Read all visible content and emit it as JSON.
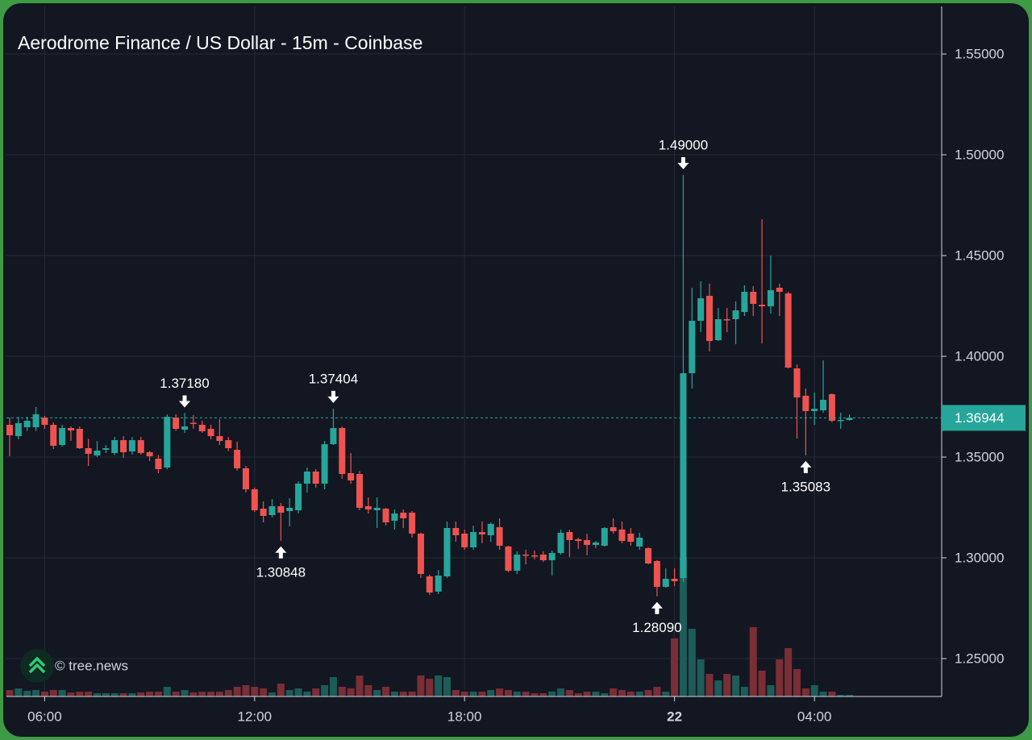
{
  "chart_data": {
    "type": "candlestick",
    "title": "Aerodrome Finance / US Dollar - 15m - Coinbase",
    "watermark": "© tree.news",
    "categories": [
      null,
      null,
      null,
      null,
      "06:00",
      null,
      null,
      null,
      null,
      null,
      null,
      null,
      null,
      null,
      null,
      null,
      null,
      null,
      null,
      null,
      null,
      null,
      null,
      null,
      null,
      null,
      null,
      null,
      "12:00",
      null,
      null,
      null,
      null,
      null,
      null,
      null,
      null,
      null,
      null,
      null,
      null,
      null,
      null,
      null,
      null,
      null,
      null,
      null,
      null,
      null,
      null,
      null,
      "18:00",
      null,
      null,
      null,
      null,
      null,
      null,
      null,
      null,
      null,
      null,
      null,
      null,
      null,
      null,
      null,
      null,
      null,
      null,
      null,
      null,
      null,
      null,
      null,
      "22",
      null,
      null,
      null,
      null,
      null,
      null,
      null,
      null,
      null,
      null,
      null,
      null,
      null,
      null,
      null,
      "04:00",
      null,
      null,
      null,
      null
    ],
    "open": [
      1.366,
      1.3604,
      1.3648,
      1.3648,
      1.3696,
      1.366,
      1.356,
      1.3644,
      1.364,
      1.3544,
      1.3508,
      1.3536,
      1.352,
      1.3584,
      1.3528,
      1.3584,
      1.3524,
      1.3492,
      1.3448,
      1.3696,
      1.3636,
      1.367,
      1.366,
      1.364,
      1.3604,
      1.3584,
      1.3536,
      1.3444,
      1.334,
      1.3244,
      1.3212,
      1.3256,
      1.3232,
      1.3236,
      1.3368,
      1.3428,
      1.3368,
      1.3564,
      1.3644,
      1.342,
      1.3416,
      1.3256,
      1.3236,
      1.3244,
      1.3184,
      1.3224,
      1.3224,
      1.312,
      1.2908,
      1.2832,
      1.2908,
      1.3148,
      1.312,
      1.3052,
      1.3128,
      1.3112,
      1.3152,
      1.3056,
      1.2936,
      1.3016,
      1.3012,
      1.3016,
      1.2988,
      1.3024,
      1.3128,
      1.3092,
      1.3088,
      1.3064,
      1.306,
      1.3152,
      1.314,
      1.312,
      1.3056,
      1.3048,
      1.2984,
      1.2856,
      1.2896,
      1.29,
      1.3916,
      1.4176,
      1.43,
      1.408,
      1.4184,
      1.4184,
      1.422,
      1.432,
      1.4256,
      1.4248,
      1.434,
      1.4312,
      1.394,
      1.3804,
      1.3728,
      1.3732,
      1.3812,
      1.368,
      1.3684
    ],
    "high": [
      1.3696,
      1.37,
      1.37,
      1.3748,
      1.3704,
      1.3672,
      1.366,
      1.3652,
      1.3652,
      1.359,
      1.358,
      1.356,
      1.36,
      1.3604,
      1.36,
      1.36,
      1.353,
      1.351,
      1.3712,
      1.3712,
      1.3718,
      1.3708,
      1.368,
      1.366,
      1.3688,
      1.36,
      1.3576,
      1.3456,
      1.3348,
      1.328,
      1.3292,
      1.3272,
      1.3296,
      1.338,
      1.3448,
      1.344,
      1.358,
      1.37404,
      1.3652,
      1.352,
      1.343,
      1.33,
      1.33,
      1.3248,
      1.324,
      1.324,
      1.3232,
      1.3124,
      1.2916,
      1.294,
      1.318,
      1.318,
      1.314,
      1.316,
      1.318,
      1.3176,
      1.3196,
      1.306,
      1.3032,
      1.304,
      1.3036,
      1.3032,
      1.3036,
      1.314,
      1.314,
      1.31,
      1.312,
      1.3084,
      1.3152,
      1.3196,
      1.318,
      1.3148,
      1.3124,
      1.3052,
      1.2988,
      1.2948,
      1.2948,
      1.49,
      1.434,
      1.4372,
      1.436,
      1.424,
      1.424,
      1.4272,
      1.4352,
      1.4348,
      1.468,
      1.45,
      1.436,
      1.432,
      1.396,
      1.384,
      1.382,
      1.398,
      1.3816,
      1.372,
      1.3712
    ],
    "low": [
      1.3504,
      1.3588,
      1.363,
      1.363,
      1.364,
      1.354,
      1.3552,
      1.358,
      1.354,
      1.3456,
      1.35,
      1.352,
      1.351,
      1.3496,
      1.3512,
      1.3512,
      1.348,
      1.342,
      1.344,
      1.363,
      1.362,
      1.364,
      1.362,
      1.3588,
      1.356,
      1.353,
      1.3432,
      1.3324,
      1.3228,
      1.3176,
      1.32,
      1.30848,
      1.3156,
      1.322,
      1.3324,
      1.3348,
      1.334,
      1.356,
      1.3392,
      1.3368,
      1.3236,
      1.322,
      1.3148,
      1.316,
      1.314,
      1.3148,
      1.31,
      1.29,
      1.2816,
      1.282,
      1.29,
      1.308,
      1.304,
      1.304,
      1.3072,
      1.308,
      1.304,
      1.2928,
      1.292,
      1.2968,
      1.2992,
      1.298,
      1.2912,
      1.3016,
      1.3004,
      1.3044,
      1.3012,
      1.3048,
      1.3056,
      1.312,
      1.3072,
      1.306,
      1.304,
      1.2968,
      1.2809,
      1.2852,
      1.286,
      1.288,
      1.384,
      1.412,
      1.4024,
      1.4076,
      1.412,
      1.406,
      1.42,
      1.42,
      1.4064,
      1.4212,
      1.42,
      1.394,
      1.3592,
      1.35083,
      1.366,
      1.372,
      1.3672,
      1.364,
      1.368
    ],
    "close": [
      1.3608,
      1.3668,
      1.368,
      1.3712,
      1.366,
      1.3556,
      1.3644,
      1.3632,
      1.3544,
      1.3516,
      1.3532,
      1.3544,
      1.3584,
      1.3524,
      1.3584,
      1.352,
      1.3504,
      1.344,
      1.37,
      1.364,
      1.3652,
      1.3668,
      1.3628,
      1.3604,
      1.358,
      1.3544,
      1.3444,
      1.334,
      1.3236,
      1.3208,
      1.3256,
      1.3224,
      1.3248,
      1.3368,
      1.3428,
      1.3368,
      1.3564,
      1.3644,
      1.3416,
      1.3384,
      1.3248,
      1.324,
      1.3248,
      1.3176,
      1.322,
      1.3196,
      1.312,
      1.292,
      1.2828,
      1.2912,
      1.3148,
      1.3112,
      1.3052,
      1.3128,
      1.3116,
      1.3168,
      1.306,
      1.2936,
      1.3016,
      1.3012,
      1.3008,
      1.2988,
      1.3024,
      1.3124,
      1.3088,
      1.3084,
      1.3064,
      1.3076,
      1.3148,
      1.3132,
      1.3084,
      1.308,
      1.31,
      1.2972,
      1.2856,
      1.2896,
      1.2884,
      1.3916,
      1.4176,
      1.4288,
      1.4076,
      1.4184,
      1.418,
      1.4228,
      1.432,
      1.426,
      1.4248,
      1.4328,
      1.432,
      1.3944,
      1.3796,
      1.3728,
      1.374,
      1.3784,
      1.368,
      1.3684,
      1.36944
    ],
    "volume": [
      8,
      10,
      7,
      8,
      6,
      8,
      8,
      5,
      6,
      6,
      4,
      4,
      4,
      4,
      4,
      5,
      6,
      6,
      12,
      6,
      8,
      5,
      6,
      6,
      6,
      8,
      12,
      14,
      12,
      10,
      5,
      16,
      8,
      10,
      6,
      10,
      14,
      24,
      12,
      10,
      26,
      14,
      8,
      12,
      6,
      6,
      6,
      26,
      22,
      26,
      24,
      8,
      6,
      6,
      6,
      8,
      10,
      8,
      6,
      6,
      4,
      4,
      6,
      10,
      8,
      4,
      6,
      6,
      4,
      10,
      8,
      6,
      6,
      8,
      12,
      6,
      72,
      172,
      84,
      46,
      28,
      20,
      28,
      26,
      12,
      86,
      32,
      14,
      46,
      60,
      34,
      10,
      14,
      6,
      6,
      2,
      2
    ],
    "up_color": "#26a69a",
    "down_color": "#ef5350",
    "volume_up_color": "#1d5c58",
    "volume_down_color": "#7a2e35",
    "ylim": [
      1.2312,
      1.5736
    ],
    "yticks": [
      {
        "value": 1.25,
        "label": "1.25000"
      },
      {
        "value": 1.3,
        "label": "1.30000"
      },
      {
        "value": 1.35,
        "label": "1.35000"
      },
      {
        "value": 1.4,
        "label": "1.40000"
      },
      {
        "value": 1.45,
        "label": "1.45000"
      },
      {
        "value": 1.5,
        "label": "1.50000"
      },
      {
        "value": 1.55,
        "label": "1.55000"
      }
    ],
    "grid": true,
    "last_price": {
      "value": 1.36944,
      "label": "1.36944"
    },
    "annotations": [
      {
        "value": 1.3718,
        "label": "1.37180"
      },
      {
        "value": 1.37404,
        "label": "1.37404"
      },
      {
        "value": 1.30848,
        "label": "1.30848"
      },
      {
        "value": 1.49,
        "label": "1.49000"
      },
      {
        "value": 1.2809,
        "label": "1.28090"
      },
      {
        "value": 1.35083,
        "label": "1.35083"
      }
    ]
  }
}
